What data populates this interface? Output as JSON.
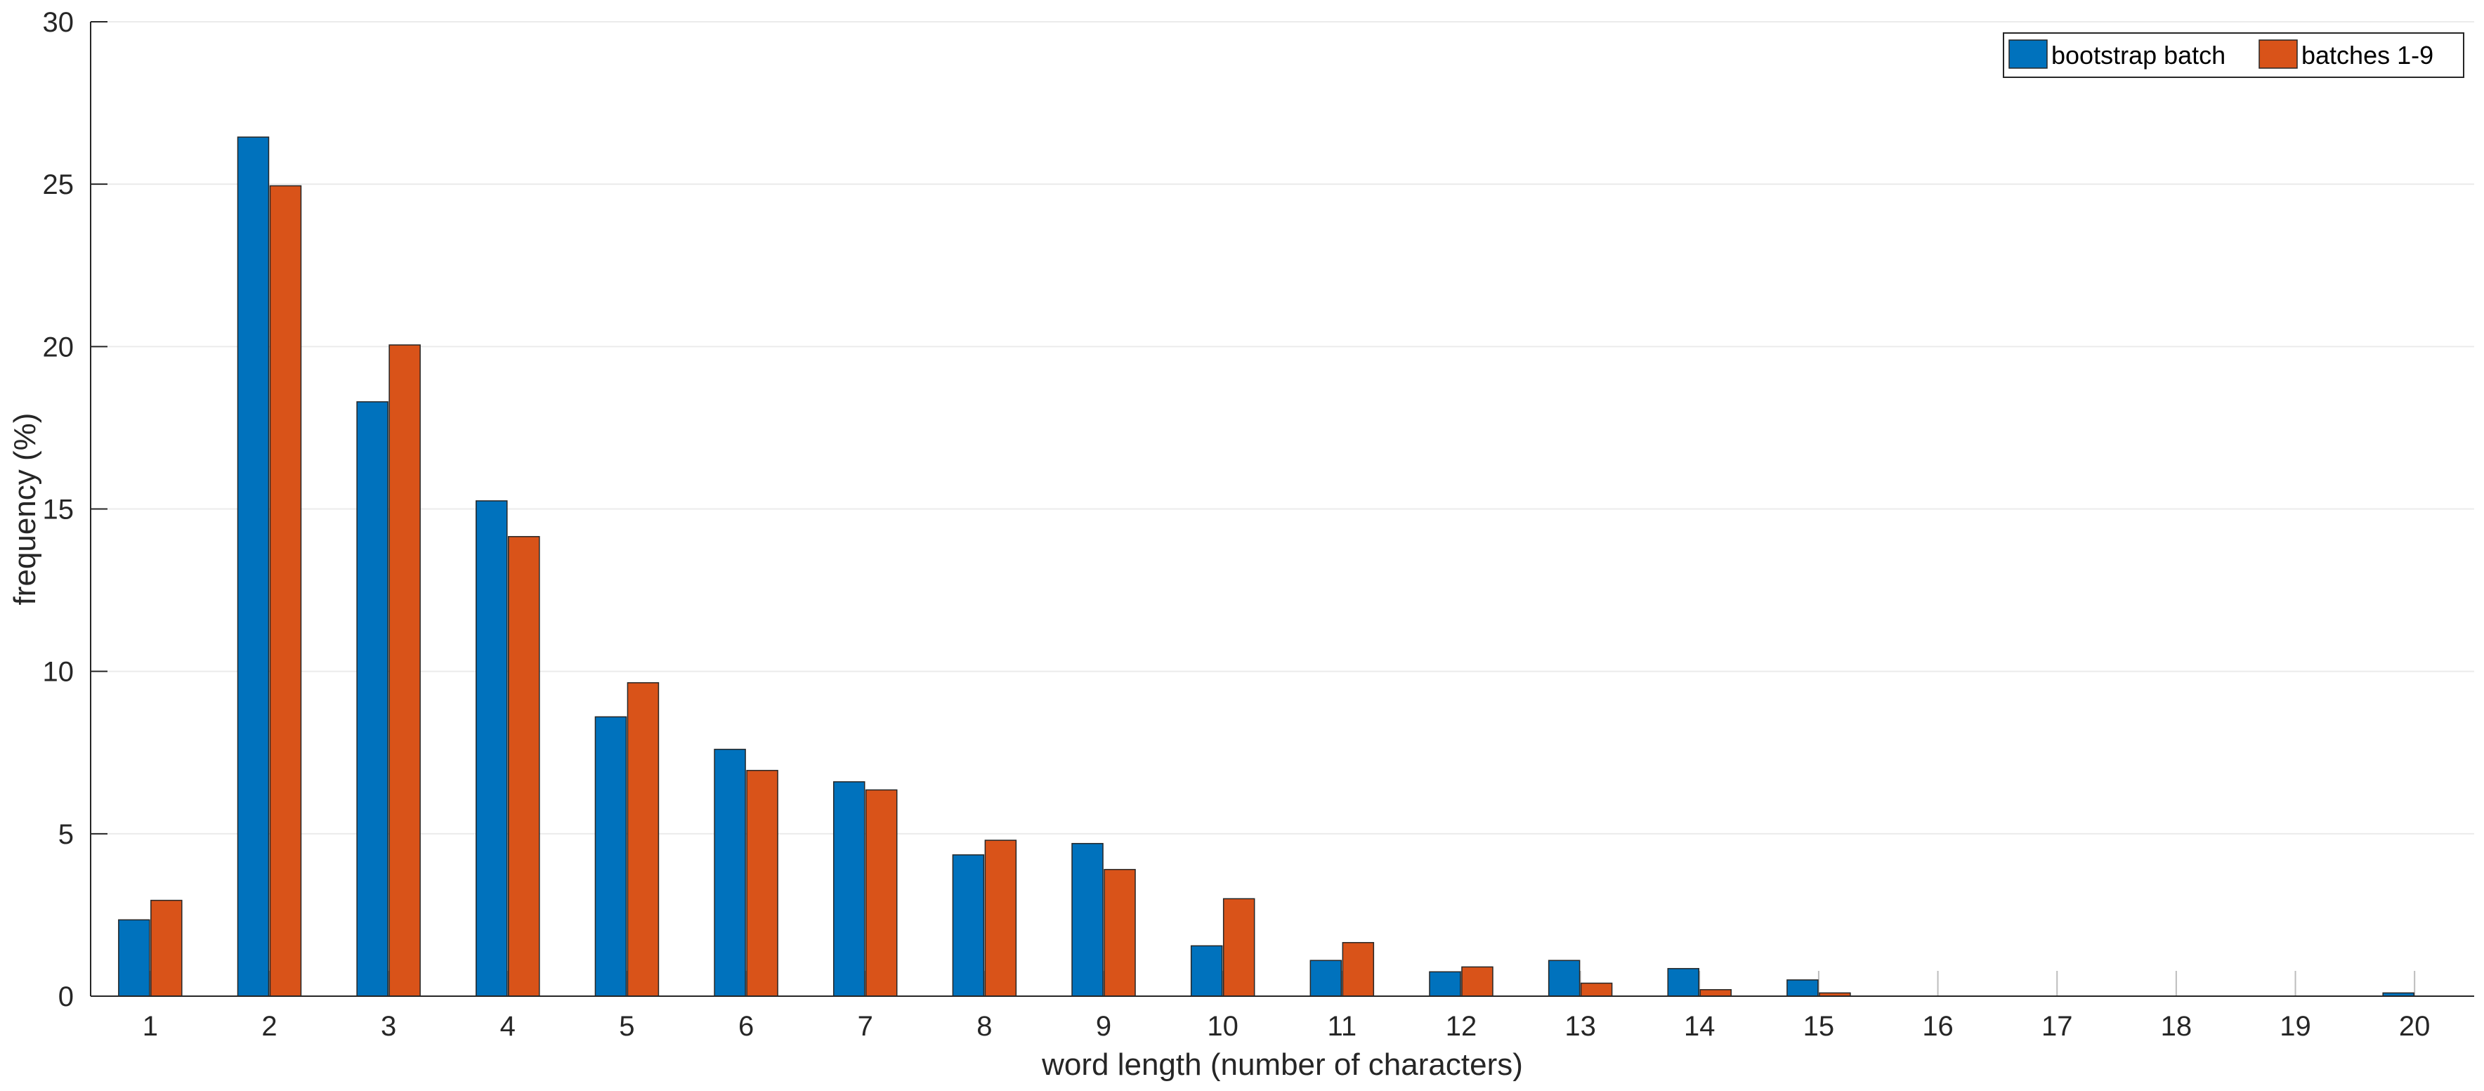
{
  "chart_data": {
    "type": "bar",
    "title": "",
    "xlabel": "word length (number of characters)",
    "ylabel": "frequency (%)",
    "categories": [
      "1",
      "2",
      "3",
      "4",
      "5",
      "6",
      "7",
      "8",
      "9",
      "10",
      "11",
      "12",
      "13",
      "14",
      "15",
      "16",
      "17",
      "18",
      "19",
      "20"
    ],
    "ylim": [
      0,
      30
    ],
    "yticks": [
      "0",
      "5",
      "10",
      "15",
      "20",
      "25",
      "30"
    ],
    "grid": "horizontal",
    "legend_position": "top-right",
    "series": [
      {
        "name": "bootstrap batch",
        "color": "#0072BD",
        "values": [
          2.35,
          26.45,
          18.3,
          15.25,
          8.6,
          7.6,
          6.6,
          4.35,
          4.7,
          1.55,
          1.1,
          0.75,
          1.1,
          0.85,
          0.5,
          0,
          0,
          0,
          0,
          0.1
        ]
      },
      {
        "name": "batches 1-9",
        "color": "#D95319",
        "values": [
          2.95,
          24.95,
          20.05,
          14.15,
          9.65,
          6.95,
          6.35,
          4.8,
          3.9,
          3.0,
          1.65,
          0.9,
          0.4,
          0.2,
          0.1,
          0,
          0,
          0,
          0,
          0
        ]
      }
    ]
  }
}
